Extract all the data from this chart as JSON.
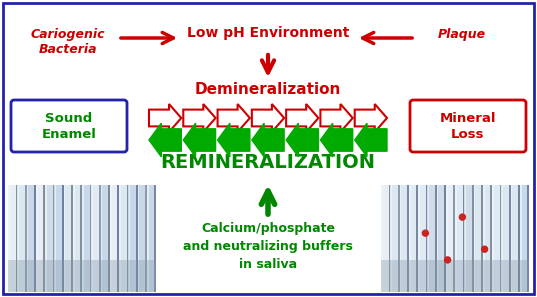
{
  "bg_color": "#ffffff",
  "border_color": "#1a1a8c",
  "top_center_text": "Low pH Environment",
  "top_left_text": "Cariogenic\nBacteria",
  "top_right_text": "Plaque",
  "demineralization_text": "Demineralization",
  "remineralization_text": "REMINERALIZATION",
  "bottom_text": "Calcium/phosphate\nand neutralizing buffers\nin saliva",
  "sound_enamel_text": "Sound\nEnamel",
  "mineral_loss_text": "Mineral\nLoss",
  "red": "#cc0000",
  "green": "#00aa00",
  "dark_green": "#008800",
  "blue_box": "#2222aa",
  "red_box": "#cc0000",
  "n_arrows": 7,
  "figsize": [
    5.37,
    2.97
  ],
  "dpi": 100
}
